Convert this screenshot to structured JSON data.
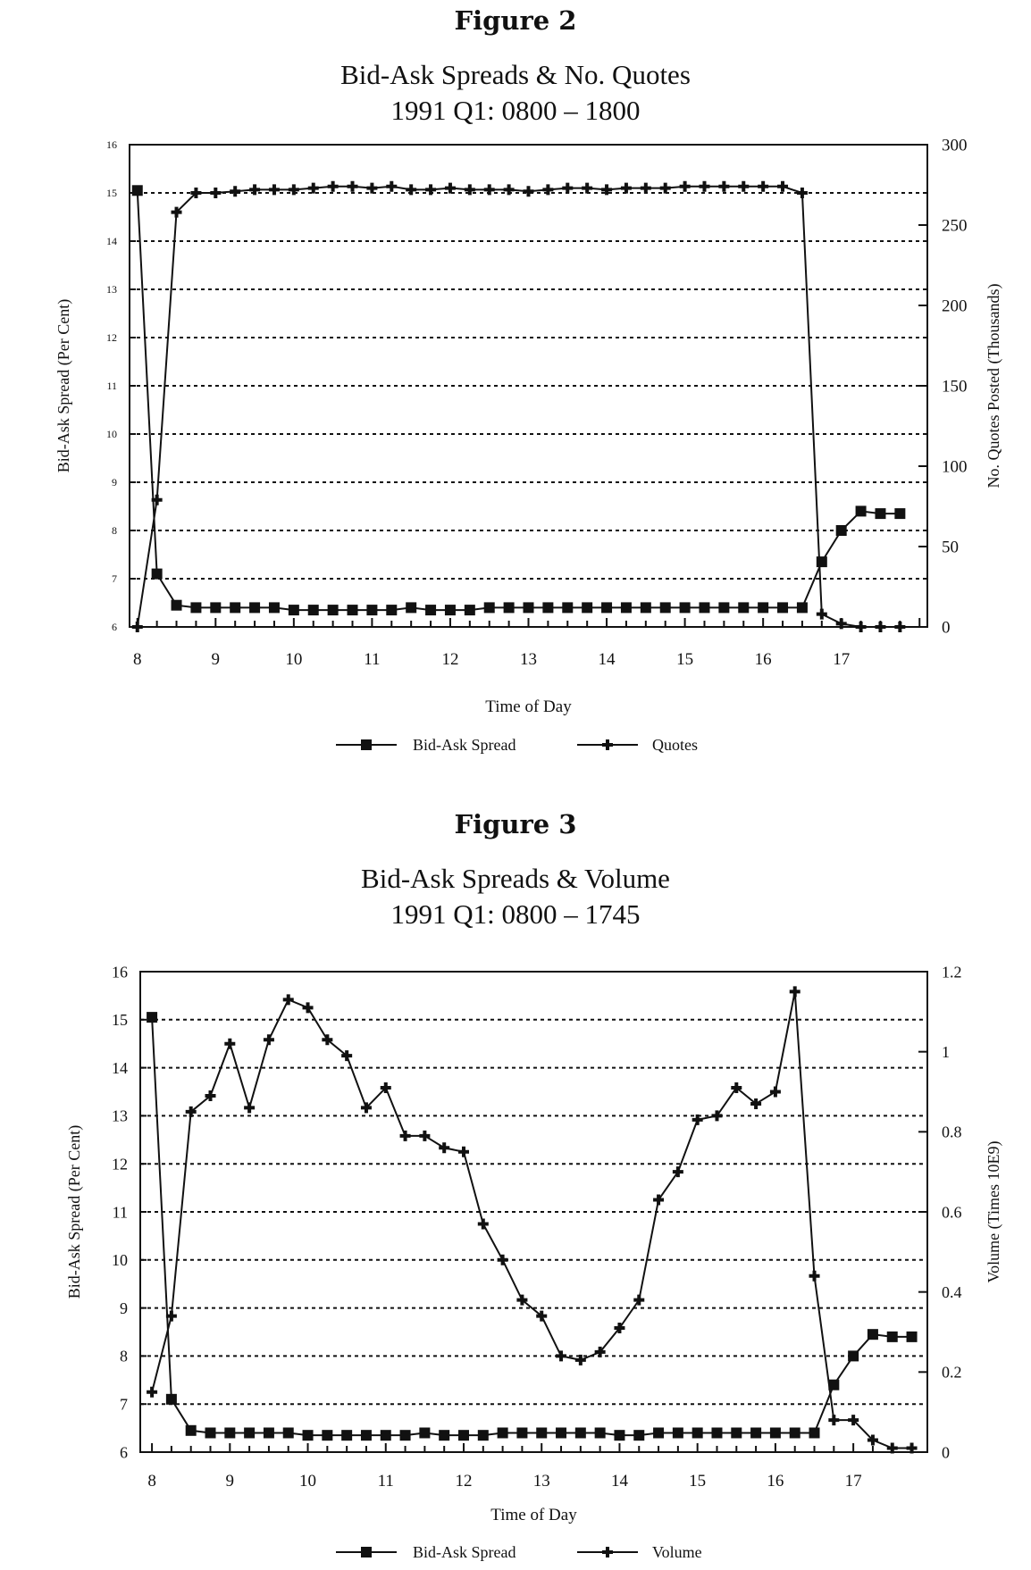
{
  "figures": [
    {
      "label": "Figure 2",
      "title_line1": "Bid-Ask Spreads & No. Quotes",
      "title_line2": "1991 Q1: 0800 – 1800"
    },
    {
      "label": "Figure 3",
      "title_line1": "Bid-Ask Spreads & Volume",
      "title_line2": "1991 Q1: 0800 – 1745"
    }
  ],
  "chart_data": [
    {
      "type": "line",
      "xlabel": "Time of Day",
      "ylabel_left": "Bid-Ask Spread (Per Cent)",
      "ylabel_right": "No. Quotes Posted (Thousands)",
      "x_ticks": [
        "8",
        "9",
        "10",
        "11",
        "12",
        "13",
        "14",
        "15",
        "16",
        "17"
      ],
      "ylim_left": [
        6,
        16
      ],
      "yticks_left": [
        "6",
        "7",
        "8",
        "9",
        "10",
        "11",
        "12",
        "13",
        "14",
        "15",
        "16"
      ],
      "ylim_right": [
        0,
        300
      ],
      "yticks_right": [
        "0",
        "50",
        "100",
        "150",
        "200",
        "250",
        "300"
      ],
      "xlim": [
        7.9,
        18.1
      ],
      "grid": "horizontal dotted",
      "legend_position": "bottom-center",
      "series": [
        {
          "name": "Bid-Ask Spread",
          "axis": "left",
          "marker": "square",
          "x": [
            8,
            8.25,
            8.5,
            8.75,
            9,
            9.25,
            9.5,
            9.75,
            10,
            10.25,
            10.5,
            10.75,
            11,
            11.25,
            11.5,
            11.75,
            12,
            12.25,
            12.5,
            12.75,
            13,
            13.25,
            13.5,
            13.75,
            14,
            14.25,
            14.5,
            14.75,
            15,
            15.25,
            15.5,
            15.75,
            16,
            16.25,
            16.5,
            16.75,
            17,
            17.25,
            17.5,
            17.75
          ],
          "values": [
            15.05,
            7.1,
            6.45,
            6.4,
            6.4,
            6.4,
            6.4,
            6.4,
            6.35,
            6.35,
            6.35,
            6.35,
            6.35,
            6.35,
            6.4,
            6.35,
            6.35,
            6.35,
            6.4,
            6.4,
            6.4,
            6.4,
            6.4,
            6.4,
            6.4,
            6.4,
            6.4,
            6.4,
            6.4,
            6.4,
            6.4,
            6.4,
            6.4,
            6.4,
            6.4,
            7.35,
            8.0,
            8.4,
            8.35,
            8.35
          ]
        },
        {
          "name": "Quotes",
          "axis": "right",
          "marker": "plus",
          "x": [
            8,
            8.25,
            8.5,
            8.75,
            9,
            9.25,
            9.5,
            9.75,
            10,
            10.25,
            10.5,
            10.75,
            11,
            11.25,
            11.5,
            11.75,
            12,
            12.25,
            12.5,
            12.75,
            13,
            13.25,
            13.5,
            13.75,
            14,
            14.25,
            14.5,
            14.75,
            15,
            15.25,
            15.5,
            15.75,
            16,
            16.25,
            16.5,
            16.75,
            17,
            17.25,
            17.5,
            17.75
          ],
          "values": [
            0,
            79,
            258,
            270,
            270,
            271,
            272,
            272,
            272,
            273,
            274,
            274,
            273,
            274,
            272,
            272,
            273,
            272,
            272,
            272,
            271,
            272,
            273,
            273,
            272,
            273,
            273,
            273,
            274,
            274,
            274,
            274,
            274,
            274,
            270,
            8,
            2,
            0,
            0,
            0
          ]
        }
      ]
    },
    {
      "type": "line",
      "xlabel": "Time of Day",
      "ylabel_left": "Bid-Ask Spread (Per Cent)",
      "ylabel_right": "Volume (Times 10E9)",
      "x_ticks": [
        "8",
        "9",
        "10",
        "11",
        "12",
        "13",
        "14",
        "15",
        "16",
        "17"
      ],
      "ylim_left": [
        6,
        16
      ],
      "yticks_left": [
        "6",
        "7",
        "8",
        "9",
        "10",
        "11",
        "12",
        "13",
        "14",
        "15",
        "16"
      ],
      "ylim_right": [
        0,
        1.2
      ],
      "yticks_right": [
        "0",
        "0.2",
        "0.4",
        "0.6",
        "0.8",
        "1",
        "1.2"
      ],
      "xlim": [
        7.85,
        17.95
      ],
      "grid": "horizontal dotted",
      "legend_position": "bottom-center",
      "series": [
        {
          "name": "Bid-Ask Spread",
          "axis": "left",
          "marker": "square",
          "x": [
            8,
            8.25,
            8.5,
            8.75,
            9,
            9.25,
            9.5,
            9.75,
            10,
            10.25,
            10.5,
            10.75,
            11,
            11.25,
            11.5,
            11.75,
            12,
            12.25,
            12.5,
            12.75,
            13,
            13.25,
            13.5,
            13.75,
            14,
            14.25,
            14.5,
            14.75,
            15,
            15.25,
            15.5,
            15.75,
            16,
            16.25,
            16.5,
            16.75,
            17,
            17.25,
            17.5,
            17.75
          ],
          "values": [
            15.05,
            7.1,
            6.45,
            6.4,
            6.4,
            6.4,
            6.4,
            6.4,
            6.35,
            6.35,
            6.35,
            6.35,
            6.35,
            6.35,
            6.4,
            6.35,
            6.35,
            6.35,
            6.4,
            6.4,
            6.4,
            6.4,
            6.4,
            6.4,
            6.35,
            6.35,
            6.4,
            6.4,
            6.4,
            6.4,
            6.4,
            6.4,
            6.4,
            6.4,
            6.4,
            7.4,
            8.0,
            8.45,
            8.4,
            8.4
          ]
        },
        {
          "name": "Volume",
          "axis": "right",
          "marker": "plus",
          "x": [
            8,
            8.25,
            8.5,
            8.75,
            9,
            9.25,
            9.5,
            9.75,
            10,
            10.25,
            10.5,
            10.75,
            11,
            11.25,
            11.5,
            11.75,
            12,
            12.25,
            12.5,
            12.75,
            13,
            13.25,
            13.5,
            13.75,
            14,
            14.25,
            14.5,
            14.75,
            15,
            15.25,
            15.5,
            15.75,
            16,
            16.25,
            16.5,
            16.75,
            17,
            17.25,
            17.5,
            17.75
          ],
          "values": [
            0.15,
            0.34,
            0.85,
            0.89,
            1.02,
            0.86,
            1.03,
            1.13,
            1.11,
            1.03,
            0.99,
            0.86,
            0.91,
            0.79,
            0.79,
            0.76,
            0.75,
            0.57,
            0.48,
            0.38,
            0.34,
            0.24,
            0.23,
            0.25,
            0.31,
            0.38,
            0.63,
            0.7,
            0.83,
            0.84,
            0.91,
            0.87,
            0.9,
            1.15,
            0.44,
            0.08,
            0.08,
            0.03,
            0.01,
            0.01
          ]
        }
      ]
    }
  ]
}
